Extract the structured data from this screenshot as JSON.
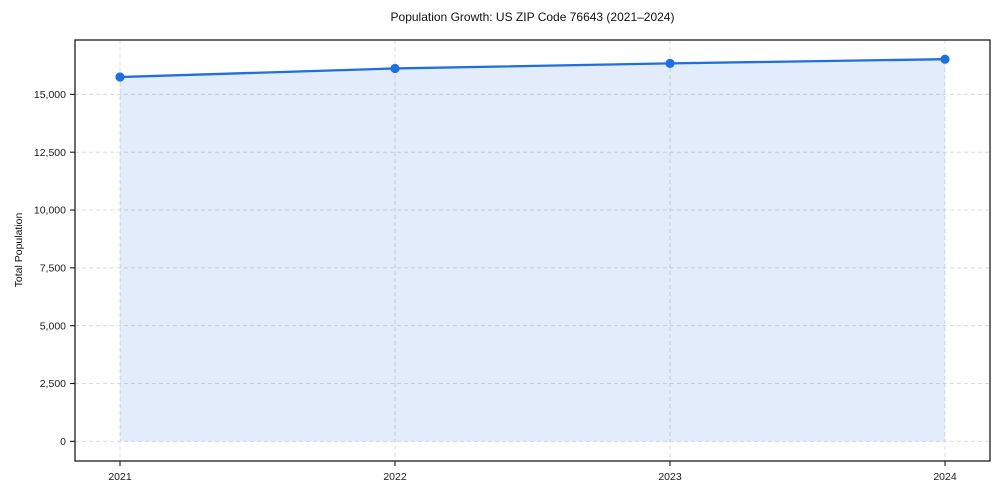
{
  "chart_data": {
    "type": "area",
    "title": "Population Growth: US ZIP Code 76643 (2021–2024)",
    "xlabel": "",
    "ylabel": "Total Population",
    "x": [
      2021,
      2022,
      2023,
      2024
    ],
    "xtick_labels": [
      "2021",
      "2022",
      "2023",
      "2024"
    ],
    "series": [
      {
        "name": "Total Population",
        "values": [
          15750,
          16120,
          16340,
          16520
        ]
      }
    ],
    "yticks": [
      0,
      2500,
      5000,
      7500,
      10000,
      12500,
      15000
    ],
    "ytick_labels": [
      "0",
      "2,500",
      "5,000",
      "7,500",
      "10,000",
      "12,500",
      "15,000"
    ],
    "ylim": [
      -850,
      17350
    ],
    "grid": "dashed, both axes",
    "legend": "none",
    "line_color": "#1f6fe0",
    "marker": "circle",
    "fill_color": "rgba(31,111,224,0.13)",
    "grid_color": "#dcdcdc",
    "spine_color": "#1c1c1c",
    "tick_label_color": "#1a1a1a"
  }
}
